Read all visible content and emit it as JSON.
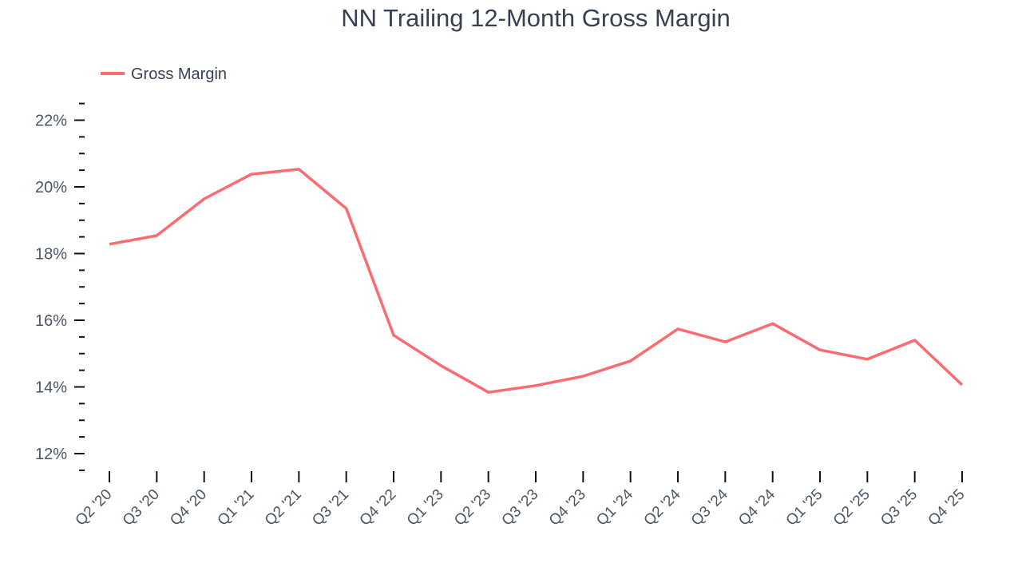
{
  "chart_data": {
    "type": "line",
    "title": "NN Trailing 12-Month Gross Margin",
    "xlabel": "",
    "ylabel": "",
    "ylim": [
      11.5,
      23
    ],
    "yticks": [
      12,
      14,
      16,
      18,
      20,
      22
    ],
    "ytick_labels": [
      "12%",
      "14%",
      "16%",
      "18%",
      "20%",
      "22%"
    ],
    "y_minor_step": 0.5,
    "grid": false,
    "legend_position": "top-left",
    "categories": [
      "Q2 '20",
      "Q3 '20",
      "Q4 '20",
      "Q1 '21",
      "Q2 '21",
      "Q3 '21",
      "Q4 '22",
      "Q1 '23",
      "Q2 '23",
      "Q3 '23",
      "Q4 '23",
      "Q1 '24",
      "Q2 '24",
      "Q3 '24",
      "Q4 '24",
      "Q1 '25",
      "Q2 '25",
      "Q3 '25",
      "Q4 '25"
    ],
    "series": [
      {
        "name": "Gross Margin",
        "color": "#fb6b6f",
        "values": [
          18.28,
          18.54,
          19.64,
          20.38,
          20.53,
          19.35,
          15.55,
          14.64,
          13.84,
          14.04,
          14.32,
          14.78,
          15.74,
          15.35,
          15.9,
          15.11,
          14.83,
          15.4,
          14.06
        ]
      }
    ]
  },
  "legend": {
    "label": "Gross Margin"
  }
}
